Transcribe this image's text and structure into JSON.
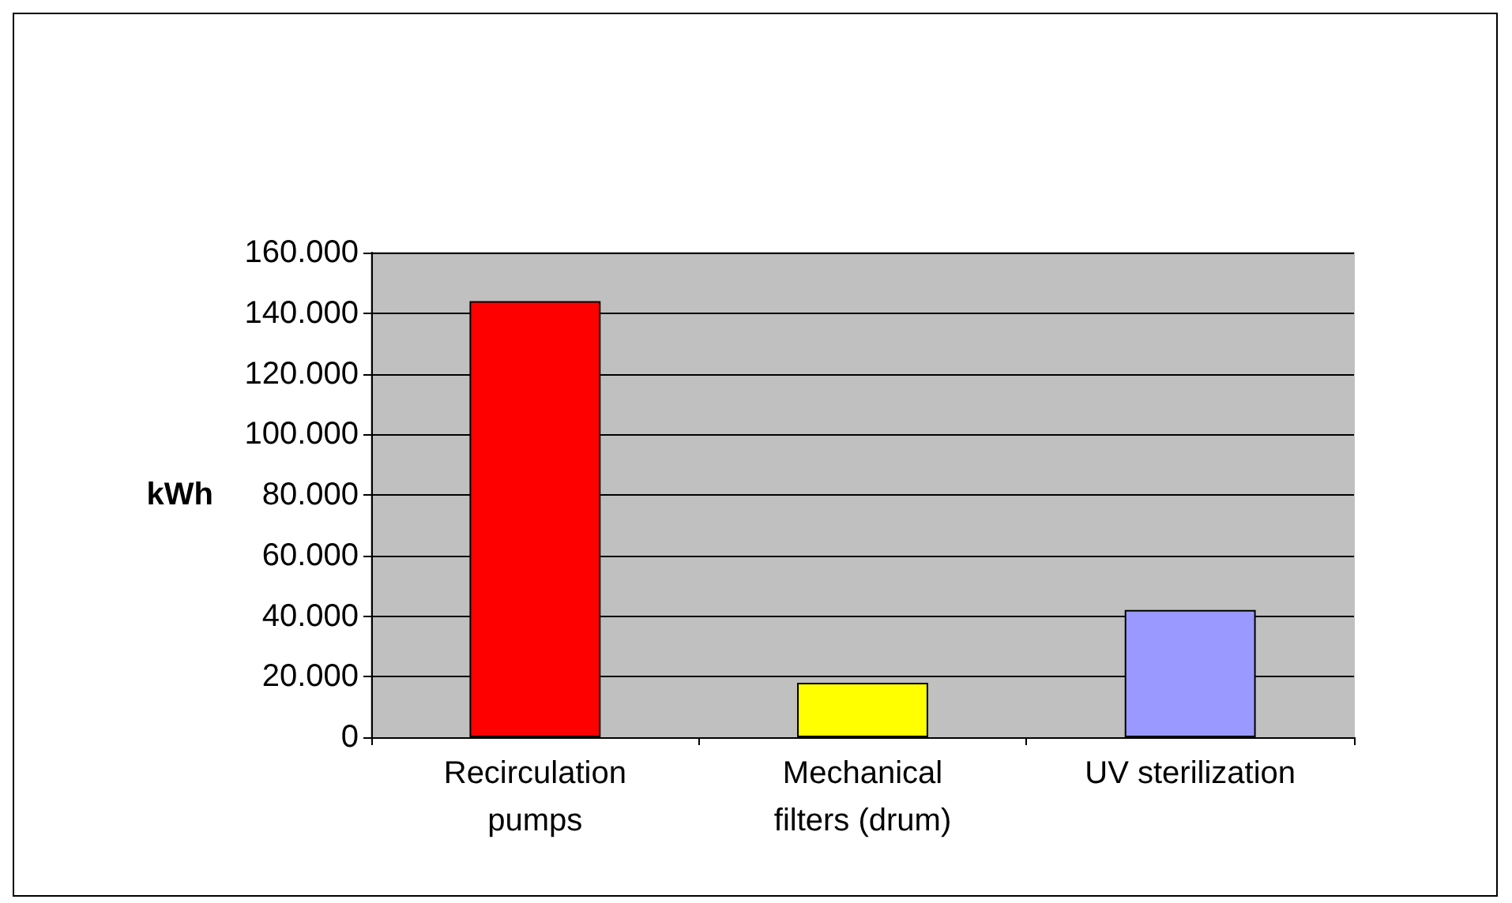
{
  "chart_data": {
    "type": "bar",
    "ylabel": "kWh",
    "categories": [
      "Recirculation pumps",
      "Mechanical filters (drum)",
      "UV sterilization"
    ],
    "values": [
      144000,
      18000,
      42000
    ],
    "colors": [
      "#ff0000",
      "#ffff00",
      "#9999ff"
    ],
    "ylim": [
      0,
      160000
    ],
    "yticks": [
      {
        "value": 0,
        "label": "0"
      },
      {
        "value": 20000,
        "label": "20.000"
      },
      {
        "value": 40000,
        "label": "40.000"
      },
      {
        "value": 60000,
        "label": "60.000"
      },
      {
        "value": 80000,
        "label": "80.000"
      },
      {
        "value": 100000,
        "label": "100.000"
      },
      {
        "value": 120000,
        "label": "120.000"
      },
      {
        "value": 140000,
        "label": "140.000"
      },
      {
        "value": 160000,
        "label": "160.000"
      }
    ],
    "grid": "y"
  }
}
